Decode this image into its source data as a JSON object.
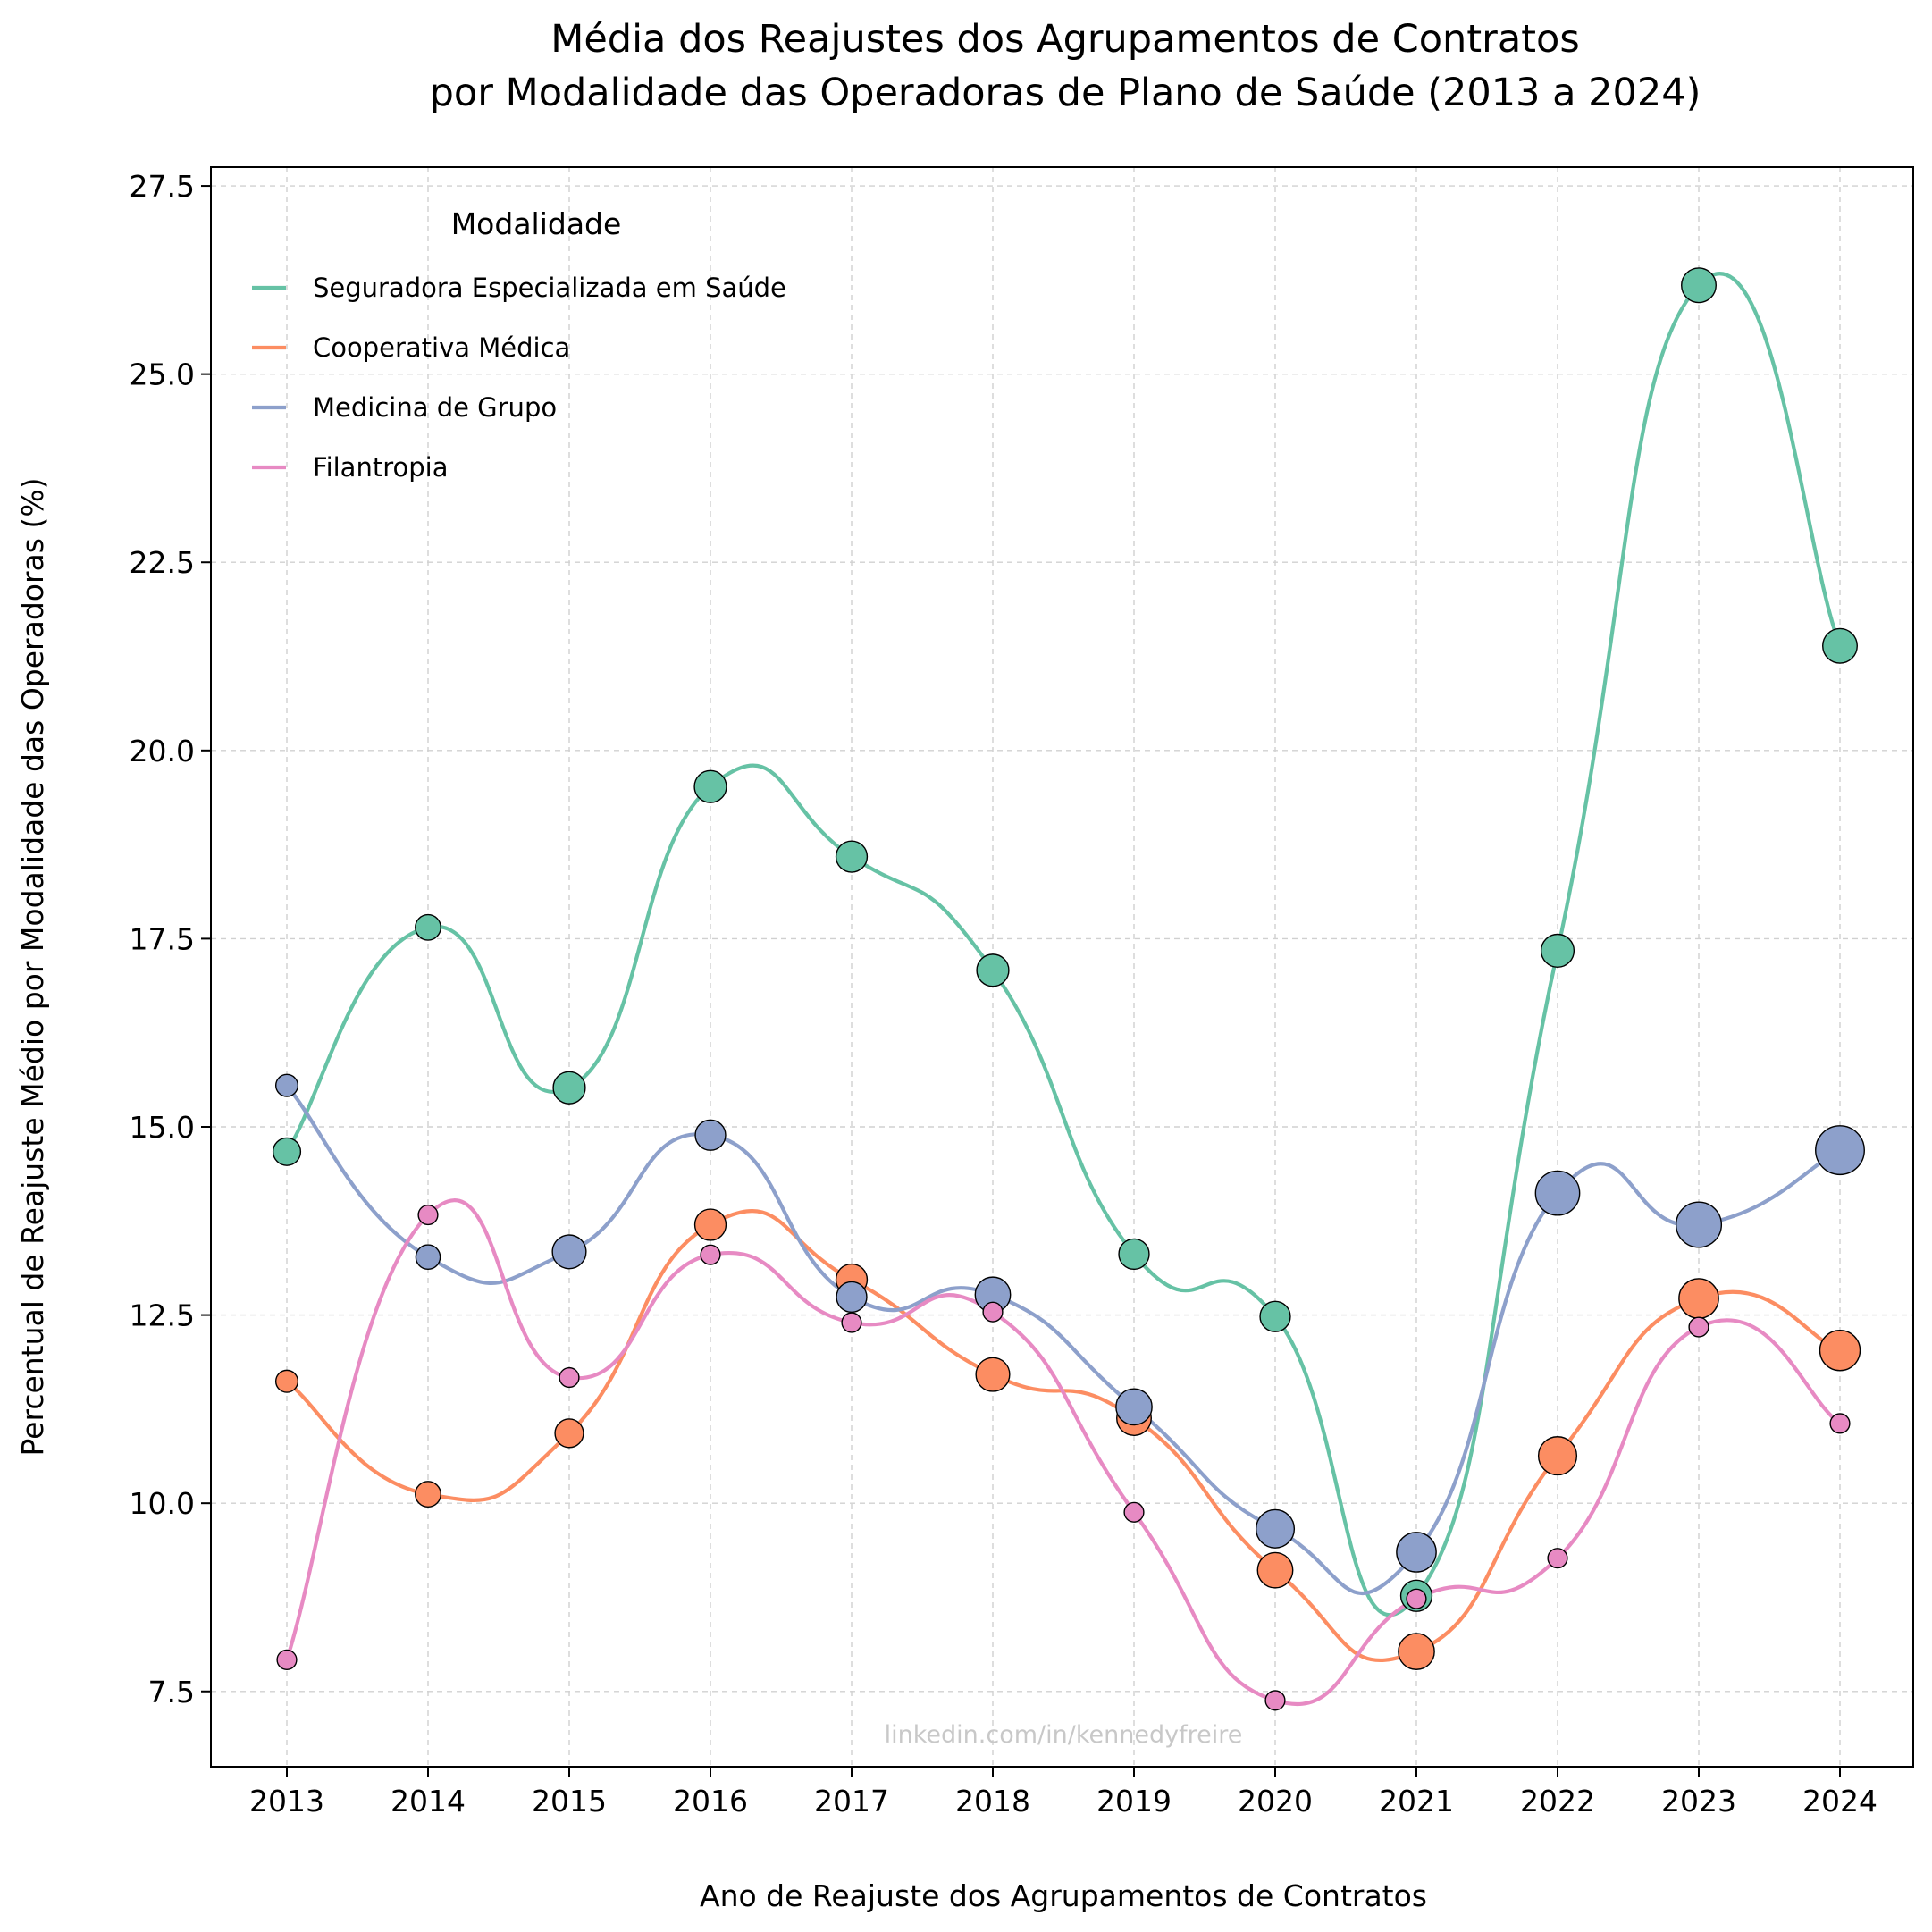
{
  "chart_data": {
    "type": "line",
    "title_line1": "Média dos Reajustes dos Agrupamentos de Contratos",
    "title_line2": "por Modalidade das Operadoras de Plano de Saúde (2013 a 2024)",
    "xlabel": "Ano de Reajuste dos Agrupamentos de Contratos",
    "ylabel": "Percentual de Reajuste Médio por Modalidade das Operadoras (%)",
    "x": [
      "2013",
      "2014",
      "2015",
      "2016",
      "2017",
      "2018",
      "2019",
      "2020",
      "2021",
      "2022",
      "2023",
      "2024"
    ],
    "yticks": [
      "7.5",
      "10.0",
      "12.5",
      "15.0",
      "17.5",
      "20.0",
      "22.5",
      "25.0",
      "27.5"
    ],
    "ylim": [
      6.5,
      27.75
    ],
    "grid": true,
    "legend": {
      "title": "Modalidade",
      "placement": "top-left"
    },
    "watermark": "linkedin.com/in/kennedyfreire",
    "series": [
      {
        "name": "Seguradora Especializada em Saúde",
        "color": "#66c2a5",
        "values": [
          14.67,
          17.65,
          15.52,
          19.52,
          18.59,
          17.08,
          13.31,
          12.48,
          8.77,
          17.34,
          26.18,
          21.39
        ],
        "sizes": [
          1.4,
          1.2,
          1.9,
          1.9,
          1.8,
          1.9,
          1.7,
          1.7,
          1.8,
          2.0,
          2.2,
          2.2
        ]
      },
      {
        "name": "Cooperativa Médica",
        "color": "#fc8d62",
        "values": [
          11.62,
          10.12,
          10.93,
          13.7,
          12.97,
          11.71,
          11.13,
          9.11,
          8.03,
          10.63,
          12.72,
          12.03
        ],
        "sizes": [
          0.9,
          1.2,
          1.5,
          1.8,
          1.8,
          2.1,
          2.2,
          2.3,
          2.4,
          2.7,
          2.9,
          3.0
        ]
      },
      {
        "name": "Medicina de Grupo",
        "color": "#8da0cb",
        "values": [
          15.55,
          13.27,
          13.34,
          14.89,
          12.74,
          12.77,
          11.28,
          9.66,
          9.35,
          14.12,
          13.7,
          14.69
        ],
        "sizes": [
          0.9,
          1.1,
          2.1,
          1.7,
          1.7,
          2.3,
          2.4,
          2.7,
          2.9,
          3.6,
          3.8,
          4.4
        ]
      },
      {
        "name": "Filantropia",
        "color": "#e78ac3",
        "values": [
          7.92,
          13.83,
          11.67,
          13.3,
          12.4,
          12.54,
          9.88,
          7.38,
          8.73,
          9.27,
          12.34,
          11.06
        ],
        "sizes": [
          0.7,
          0.7,
          0.7,
          0.7,
          0.7,
          0.7,
          0.7,
          0.7,
          0.7,
          0.7,
          0.7,
          0.7
        ]
      }
    ]
  }
}
